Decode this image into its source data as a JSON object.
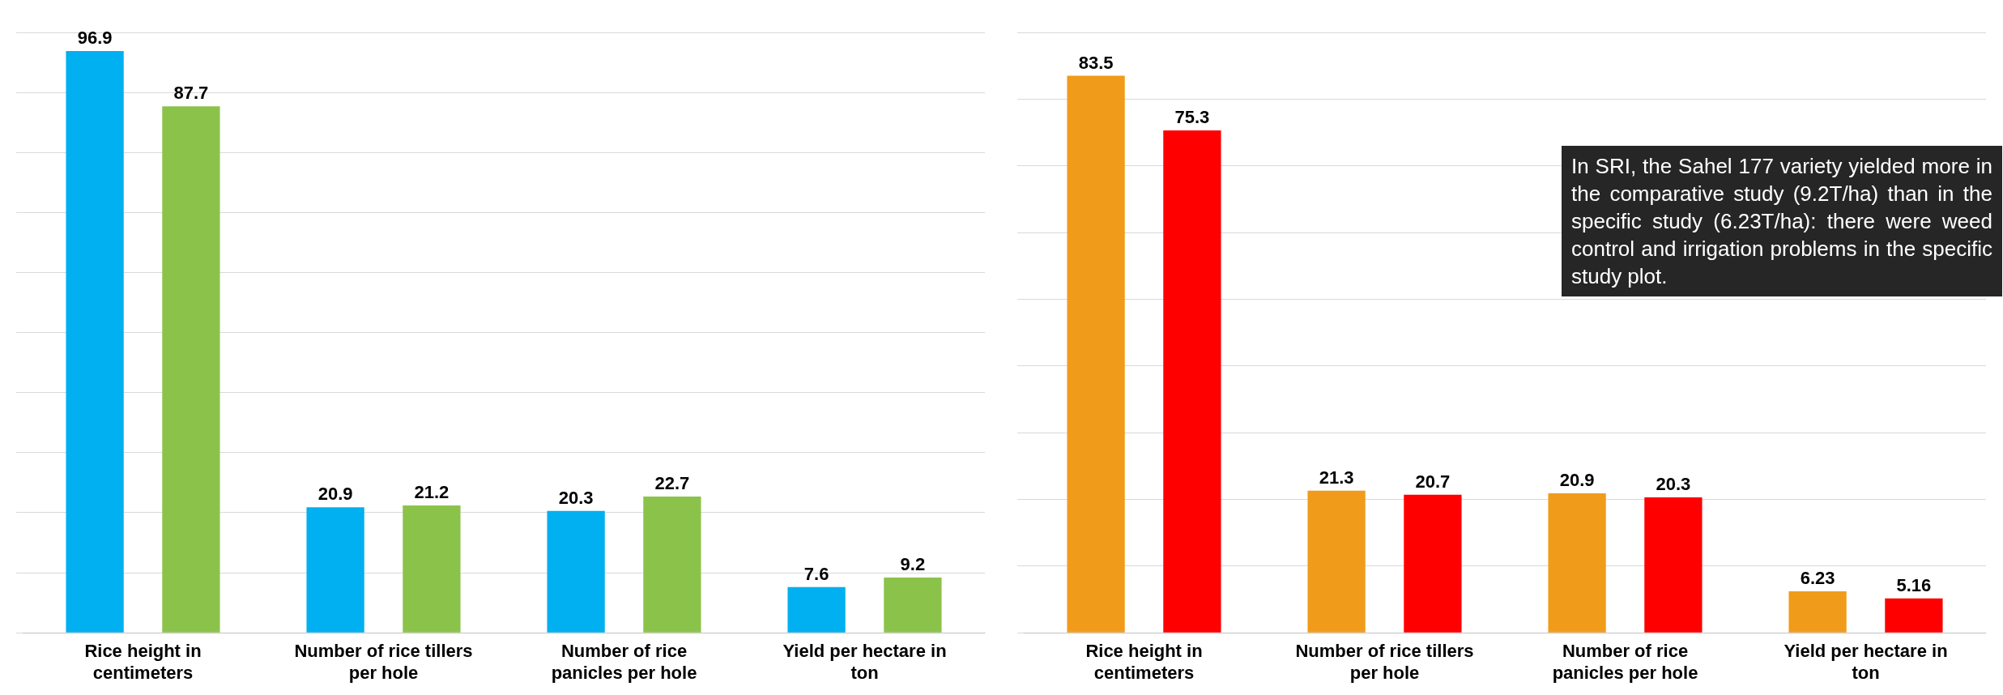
{
  "chart_data": [
    {
      "type": "bar",
      "categories": [
        "Rice height in centimeters",
        "Number of rice tillers per hole",
        "Number of rice panicles per hole",
        "Yield per hectare in ton"
      ],
      "series": [
        {
          "color": "#00b0f0",
          "values": [
            96.9,
            20.9,
            20.3,
            7.6
          ]
        },
        {
          "color": "#8bc34a",
          "values": [
            87.7,
            21.2,
            22.7,
            9.2
          ]
        }
      ],
      "data_labels": true,
      "grid": "y",
      "tick_labels": "x",
      "legend": false
    },
    {
      "type": "bar",
      "categories": [
        "Rice height in centimeters",
        "Number of rice tillers per hole",
        "Number of rice panicles per hole",
        "Yield per hectare in ton"
      ],
      "series": [
        {
          "color": "#f09c1a",
          "values": [
            83.5,
            21.3,
            20.9,
            6.23
          ]
        },
        {
          "color": "#ff0000",
          "values": [
            75.3,
            20.7,
            20.3,
            5.16
          ]
        }
      ],
      "data_labels": true,
      "grid": "y",
      "tick_labels": "x",
      "legend": false,
      "annotations": [
        "In SRI, the Sahel 177 variety yielded more in the comparative study (9.2T/ha) than in the specific study (6.23T/ha): there were weed control and irrigation problems in the specific study plot."
      ]
    }
  ]
}
